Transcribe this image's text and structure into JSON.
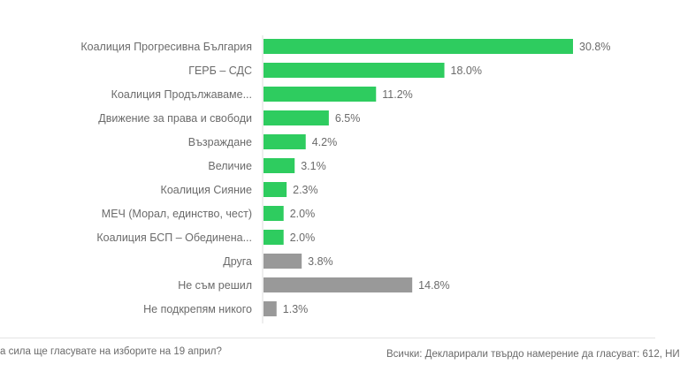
{
  "chart_data": {
    "type": "bar",
    "orientation": "horizontal",
    "categories": [
      "Коалиция Прогресивна България",
      "ГЕРБ – СДС",
      "Коалиция Продължаваме...",
      "Движение за права и свободи",
      "Възраждане",
      "Величие",
      "Коалиция Сияние",
      "МЕЧ (Морал, единство, чест)",
      "Коалиция БСП – Обединена...",
      "Друга",
      "Не съм решил",
      "Не подкрепям никого"
    ],
    "values": [
      30.8,
      18.0,
      11.2,
      6.5,
      4.2,
      3.1,
      2.3,
      2.0,
      2.0,
      3.8,
      14.8,
      1.3
    ],
    "value_labels": [
      "30.8%",
      "18.0%",
      "11.2%",
      "6.5%",
      "4.2%",
      "3.1%",
      "2.3%",
      "2.0%",
      "2.0%",
      "3.8%",
      "14.8%",
      "1.3%"
    ],
    "colors": [
      "#2ecc5f",
      "#2ecc5f",
      "#2ecc5f",
      "#2ecc5f",
      "#2ecc5f",
      "#2ecc5f",
      "#2ecc5f",
      "#2ecc5f",
      "#2ecc5f",
      "#999999",
      "#999999",
      "#999999"
    ],
    "title": "",
    "xlabel": "",
    "ylabel": "",
    "xlim": [
      0,
      30.8
    ],
    "grid": false,
    "legend": "none"
  },
  "footer": {
    "question": "а сила ще гласувате на изборите на 19 април?",
    "base": "Всички: Декларирали твърдо намерение да гласуват: 612, НИ"
  }
}
